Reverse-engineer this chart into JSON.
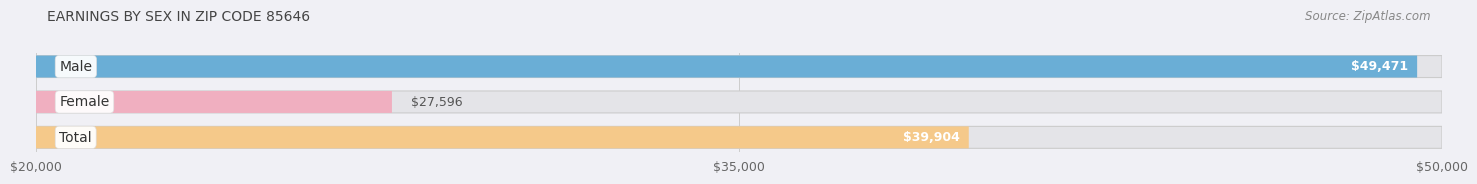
{
  "title": "EARNINGS BY SEX IN ZIP CODE 85646",
  "source": "Source: ZipAtlas.com",
  "categories": [
    "Male",
    "Female",
    "Total"
  ],
  "values": [
    49471,
    27596,
    39904
  ],
  "xlim": [
    20000,
    50000
  ],
  "xticks": [
    20000,
    35000,
    50000
  ],
  "xtick_labels": [
    "$20,000",
    "$35,000",
    "$50,000"
  ],
  "bar_colors": [
    "#6aaed6",
    "#f0afc0",
    "#f5c98a"
  ],
  "bar_labels": [
    "$49,471",
    "$27,596",
    "$39,904"
  ],
  "label_inside": [
    true,
    false,
    true
  ],
  "bg_color": "#f0f0f5",
  "bar_bg_color": "#e4e4e8",
  "title_fontsize": 10,
  "source_fontsize": 8.5,
  "tick_fontsize": 9,
  "label_fontsize": 9,
  "category_fontsize": 10
}
